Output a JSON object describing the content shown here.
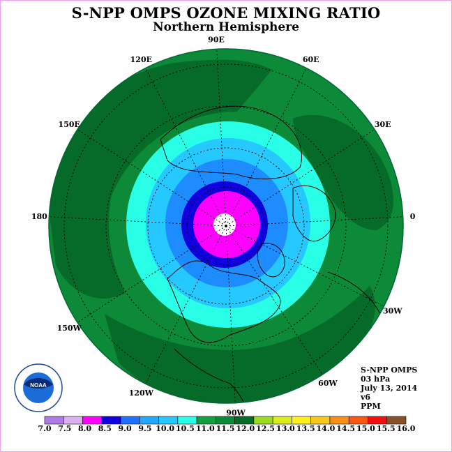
{
  "title": "S-NPP OMPS OZONE MIXING RATIO",
  "subtitle": "Northern Hemisphere",
  "logo_text": "NOAA",
  "info": {
    "instrument": "S-NPP OMPS",
    "level": "03 hPa",
    "date": "July 13, 2014",
    "version": "v6",
    "units": "PPM"
  },
  "longitude_labels": [
    "90E",
    "60E",
    "30E",
    "0",
    "30W",
    "60W",
    "90W",
    "120W",
    "150W",
    "180",
    "150E",
    "120E"
  ],
  "colorbar": {
    "ticks": [
      "7.0",
      "7.5",
      "8.0",
      "8.5",
      "9.0",
      "9.5",
      "10.0",
      "10.5",
      "11.0",
      "11.5",
      "12.0",
      "12.5",
      "13.0",
      "13.5",
      "14.0",
      "14.5",
      "15.0",
      "15.5",
      "16.0"
    ],
    "colors": [
      "#b07ae6",
      "#dcb0f0",
      "#ff00ff",
      "#1000e0",
      "#2070ff",
      "#23a8ff",
      "#25c8ff",
      "#28ffe6",
      "#12a040",
      "#0b8a3a",
      "#066a28",
      "#9bdc1e",
      "#d8ee1e",
      "#fff01e",
      "#f8c81a",
      "#f89018",
      "#f85812",
      "#f01010",
      "#8a5028"
    ]
  },
  "map_colors": {
    "background_green": "#0c8a38",
    "dark_green": "#066a28",
    "cyan": "#28ffe6",
    "sky_blue": "#25c8ff",
    "blue": "#1c8cff",
    "dark_blue": "#1000e0",
    "magenta": "#ff00ff",
    "pole_white": "#ffffff"
  }
}
